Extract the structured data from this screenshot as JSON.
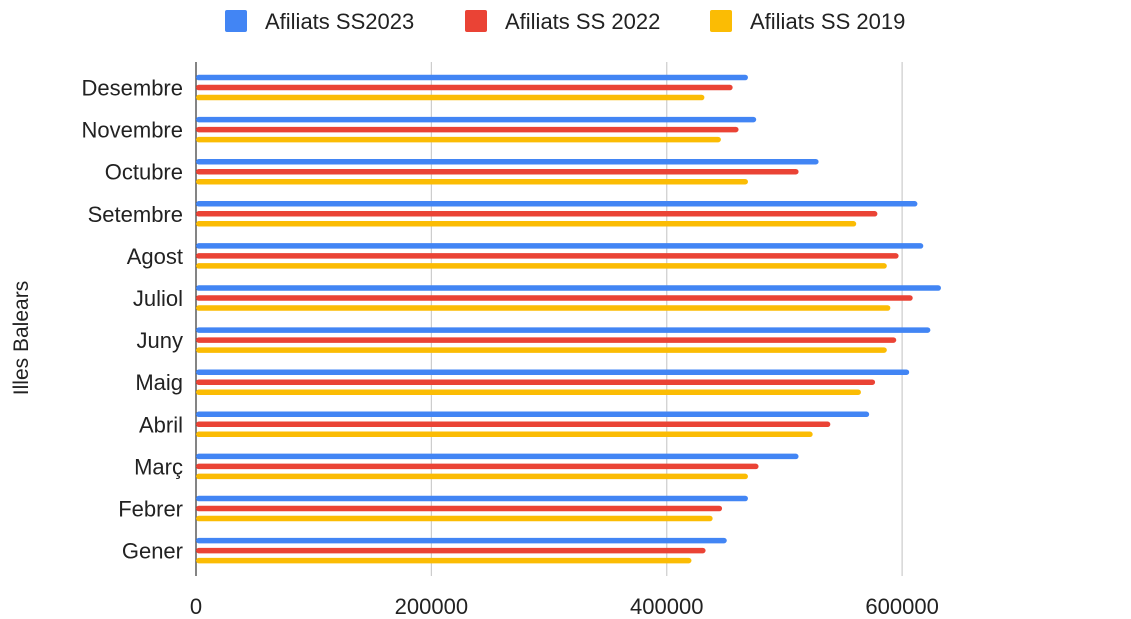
{
  "chart_data": {
    "type": "bar",
    "orientation": "horizontal",
    "ylabel": "Illes Balears",
    "xlabel": "",
    "categories": [
      "Desembre",
      "Novembre",
      "Octubre",
      "Setembre",
      "Agost",
      "Juliol",
      "Juny",
      "Maig",
      "Abril",
      "Març",
      "Febrer",
      "Gener"
    ],
    "series": [
      {
        "name": "Afiliats SS2023",
        "color": "#4285F4",
        "values": [
          469000,
          476000,
          529000,
          613000,
          618000,
          633000,
          624000,
          606000,
          572000,
          512000,
          469000,
          451000
        ]
      },
      {
        "name": "Afiliats SS 2022",
        "color": "#EA4335",
        "values": [
          456000,
          461000,
          512000,
          579000,
          597000,
          609000,
          595000,
          577000,
          539000,
          478000,
          447000,
          433000
        ]
      },
      {
        "name": "Afiliats SS 2019",
        "color": "#FBBC04",
        "values": [
          432000,
          446000,
          469000,
          561000,
          587000,
          590000,
          587000,
          565000,
          524000,
          469000,
          439000,
          421000
        ]
      }
    ],
    "xlim": [
      0,
      800000
    ],
    "x_ticks": [
      "0",
      "200000",
      "400000",
      "600000"
    ],
    "x_tick_values": [
      0,
      200000,
      400000,
      600000
    ],
    "grid": true,
    "legend_position": "top"
  }
}
